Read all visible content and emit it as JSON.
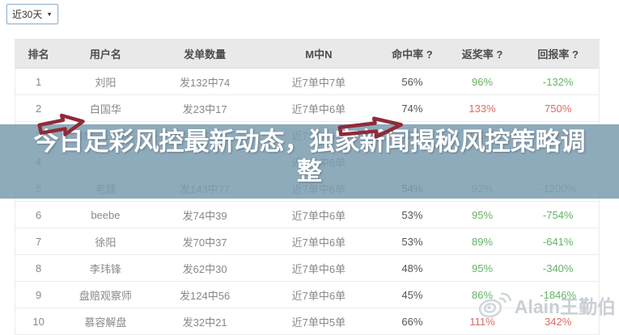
{
  "filter": {
    "selected": "近30天",
    "caret": "▼"
  },
  "banner": {
    "text": "今日足彩风控最新动态，独家新闻揭秘风控策略调整"
  },
  "watermark": {
    "text": "Alain王勤伯",
    "icon": "weibo-icon"
  },
  "colors": {
    "green": "#66b266",
    "red": "#dd6a66",
    "overlay": "rgba(124,157,176,0.86)",
    "header_bg": "#e9e9e9",
    "arrow": "#8f2b38"
  },
  "table": {
    "headers": [
      "排名",
      "用户名",
      "发单数量",
      "M中N",
      "命中率 ?",
      "返奖率 ?",
      "回报率 ?"
    ],
    "rows": [
      {
        "rank": "1",
        "user": "刘阳",
        "orders": "发132中74",
        "mn": "近7单中7单",
        "hit": "56%",
        "ret": "96%",
        "roi": "-132%",
        "tone": "green"
      },
      {
        "rank": "2",
        "user": "白国华",
        "orders": "发23中17",
        "mn": "近7单中6单",
        "hit": "74%",
        "ret": "133%",
        "roi": "750%",
        "tone": "red"
      },
      {
        "rank": "3",
        "user": "体坛王勤伯",
        "orders": "发53中38",
        "mn": "近7单中6单",
        "hit": "72%",
        "ret": "133%",
        "roi": "1902%",
        "tone": "red"
      },
      {
        "rank": "4",
        "user": "",
        "orders": "",
        "mn": "近7单中6单",
        "hit": "",
        "ret": "",
        "roi": "",
        "tone": "green"
      },
      {
        "rank": "5",
        "user": "老魏",
        "orders": "发143中77",
        "mn": "近7单中6单",
        "hit": "54%",
        "ret": "92%",
        "roi": "-1200%",
        "tone": "green"
      },
      {
        "rank": "6",
        "user": "beebe",
        "orders": "发74中39",
        "mn": "近7单中6单",
        "hit": "53%",
        "ret": "95%",
        "roi": "-754%",
        "tone": "green"
      },
      {
        "rank": "7",
        "user": "徐阳",
        "orders": "发70中37",
        "mn": "近7单中6单",
        "hit": "53%",
        "ret": "89%",
        "roi": "-641%",
        "tone": "green"
      },
      {
        "rank": "8",
        "user": "李玮锋",
        "orders": "发62中30",
        "mn": "近7单中6单",
        "hit": "48%",
        "ret": "95%",
        "roi": "-340%",
        "tone": "green"
      },
      {
        "rank": "9",
        "user": "盘赔观察师",
        "orders": "发124中56",
        "mn": "近7单中6单",
        "hit": "45%",
        "ret": "86%",
        "roi": "-1846%",
        "tone": "green"
      },
      {
        "rank": "10",
        "user": "慕容解盘",
        "orders": "发32中21",
        "mn": "近7单中5单",
        "hit": "66%",
        "ret": "111%",
        "roi": "342%",
        "tone": "red"
      }
    ]
  }
}
